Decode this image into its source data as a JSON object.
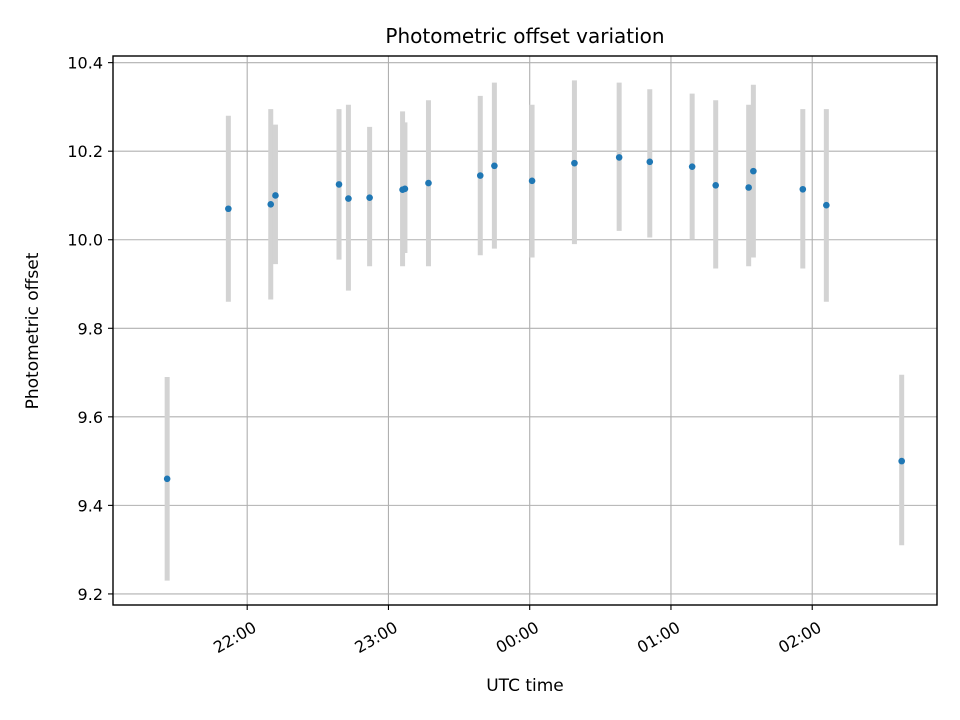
{
  "chart_data": {
    "type": "scatter",
    "title": "Photometric offset variation",
    "xlabel": "UTC time",
    "ylabel": "Photometric offset",
    "x_is_time": true,
    "xlim": [
      "21:03",
      "02:53"
    ],
    "ylim": [
      9.175,
      10.415
    ],
    "xticks": [
      {
        "time": "22:00",
        "label": "22:00"
      },
      {
        "time": "23:00",
        "label": "23:00"
      },
      {
        "time": "00:00",
        "label": "00:00"
      },
      {
        "time": "01:00",
        "label": "01:00"
      },
      {
        "time": "02:00",
        "label": "02:00"
      }
    ],
    "yticks": [
      9.2,
      9.4,
      9.6,
      9.8,
      10.0,
      10.2,
      10.4
    ],
    "ytick_labels": [
      "9.2",
      "9.4",
      "9.6",
      "9.8",
      "10.0",
      "10.2",
      "10.4"
    ],
    "grid": true,
    "marker_color": "#1f77b4",
    "errorbar_color": "#d3d3d3",
    "points": [
      {
        "time": "21:26",
        "y": 9.46,
        "y_low": 9.23,
        "y_high": 9.69
      },
      {
        "time": "21:52",
        "y": 10.07,
        "y_low": 9.86,
        "y_high": 10.28
      },
      {
        "time": "22:10",
        "y": 10.08,
        "y_low": 9.865,
        "y_high": 10.295
      },
      {
        "time": "22:12",
        "y": 10.1,
        "y_low": 9.945,
        "y_high": 10.26
      },
      {
        "time": "22:39",
        "y": 10.125,
        "y_low": 9.955,
        "y_high": 10.295
      },
      {
        "time": "22:43",
        "y": 10.093,
        "y_low": 9.885,
        "y_high": 10.305
      },
      {
        "time": "22:52",
        "y": 10.095,
        "y_low": 9.94,
        "y_high": 10.255
      },
      {
        "time": "23:06",
        "y": 10.113,
        "y_low": 9.94,
        "y_high": 10.29
      },
      {
        "time": "23:07",
        "y": 10.115,
        "y_low": 9.97,
        "y_high": 10.265
      },
      {
        "time": "23:17",
        "y": 10.128,
        "y_low": 9.94,
        "y_high": 10.315
      },
      {
        "time": "23:39",
        "y": 10.145,
        "y_low": 9.965,
        "y_high": 10.325
      },
      {
        "time": "23:45",
        "y": 10.167,
        "y_low": 9.98,
        "y_high": 10.355
      },
      {
        "time": "00:01",
        "y": 10.133,
        "y_low": 9.96,
        "y_high": 10.305
      },
      {
        "time": "00:19",
        "y": 10.173,
        "y_low": 9.99,
        "y_high": 10.36
      },
      {
        "time": "00:38",
        "y": 10.186,
        "y_low": 10.02,
        "y_high": 10.355
      },
      {
        "time": "00:51",
        "y": 10.176,
        "y_low": 10.005,
        "y_high": 10.34
      },
      {
        "time": "01:09",
        "y": 10.165,
        "y_low": 10.0,
        "y_high": 10.33
      },
      {
        "time": "01:19",
        "y": 10.123,
        "y_low": 9.935,
        "y_high": 10.315
      },
      {
        "time": "01:33",
        "y": 10.118,
        "y_low": 9.94,
        "y_high": 10.305
      },
      {
        "time": "01:35",
        "y": 10.155,
        "y_low": 9.96,
        "y_high": 10.35
      },
      {
        "time": "01:56",
        "y": 10.114,
        "y_low": 9.935,
        "y_high": 10.295
      },
      {
        "time": "02:06",
        "y": 10.078,
        "y_low": 9.86,
        "y_high": 10.295
      },
      {
        "time": "02:38",
        "y": 9.5,
        "y_low": 9.31,
        "y_high": 9.695
      }
    ]
  }
}
